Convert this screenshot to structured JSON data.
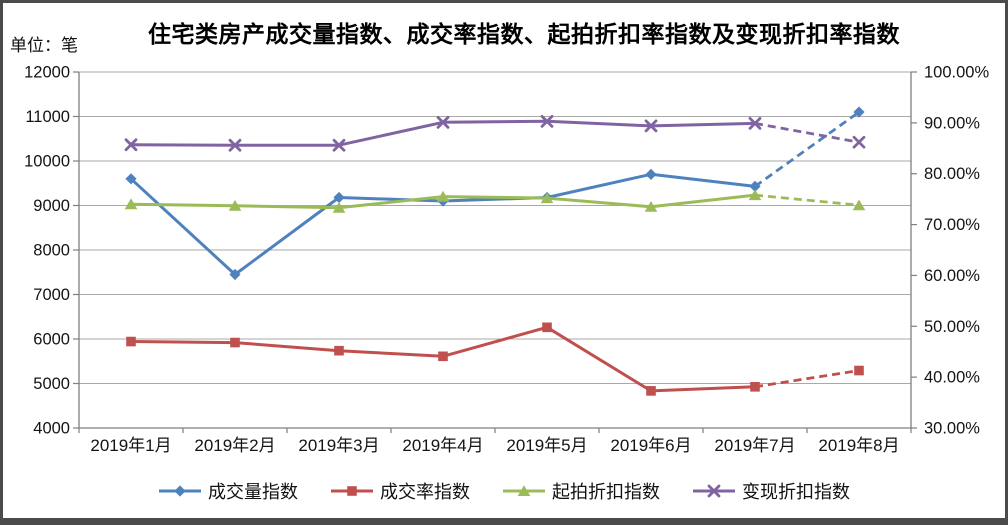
{
  "page": {
    "title": "住宅类房产成交量指数、成交率指数、起拍折扣率指数及变现折扣率指数",
    "unit_label": "单位：笔"
  },
  "chart_data": {
    "type": "line",
    "title": "住宅类房产成交量指数、成交率指数、起拍折扣率指数及变现折扣率指数",
    "unit_label": "单位：笔",
    "categories": [
      "2019年1月",
      "2019年2月",
      "2019年3月",
      "2019年4月",
      "2019年5月",
      "2019年6月",
      "2019年7月",
      "2019年8月"
    ],
    "series": [
      {
        "key": "volume-index",
        "name": "成交量指数",
        "axis": "left",
        "marker": "diamond",
        "color": "#4F81BD",
        "values": [
          9600,
          7450,
          9180,
          9100,
          9180,
          9700,
          9430,
          11100
        ],
        "dashed_from_index": 6
      },
      {
        "key": "rate-index",
        "name": "成交率指数",
        "axis": "right",
        "marker": "square",
        "color": "#C0504D",
        "values": [
          47.0,
          46.8,
          45.2,
          44.1,
          49.8,
          37.3,
          38.1,
          41.3
        ],
        "dashed_from_index": 6
      },
      {
        "key": "starting-discount-index",
        "name": "起拍折扣指数",
        "axis": "right",
        "marker": "triangle",
        "color": "#9BBB59",
        "values": [
          74.0,
          73.7,
          73.3,
          75.5,
          75.2,
          73.5,
          75.8,
          73.8
        ],
        "dashed_from_index": 6
      },
      {
        "key": "realization-discount-index",
        "name": "变现折扣指数",
        "axis": "right",
        "marker": "x",
        "color": "#8064A2",
        "values": [
          85.7,
          85.6,
          85.6,
          90.1,
          90.3,
          89.4,
          89.9,
          86.2
        ],
        "dashed_from_index": 6
      }
    ],
    "left_axis": {
      "min": 4000,
      "max": 12000,
      "tick_labels": [
        "12000",
        "11000",
        "10000",
        "9000",
        "8000",
        "7000",
        "6000",
        "5000",
        "4000"
      ]
    },
    "right_axis": {
      "min": 30,
      "max": 100,
      "tick_labels": [
        "100.00%",
        "90.00%",
        "80.00%",
        "70.00%",
        "60.00%",
        "50.00%",
        "40.00%",
        "30.00%"
      ]
    },
    "legend": {
      "position": "bottom",
      "entries": [
        "成交量指数",
        "成交率指数",
        "起拍折扣指数",
        "变现折扣指数"
      ]
    },
    "grid": "horizontal gridlines at every 1000 on left axis"
  }
}
